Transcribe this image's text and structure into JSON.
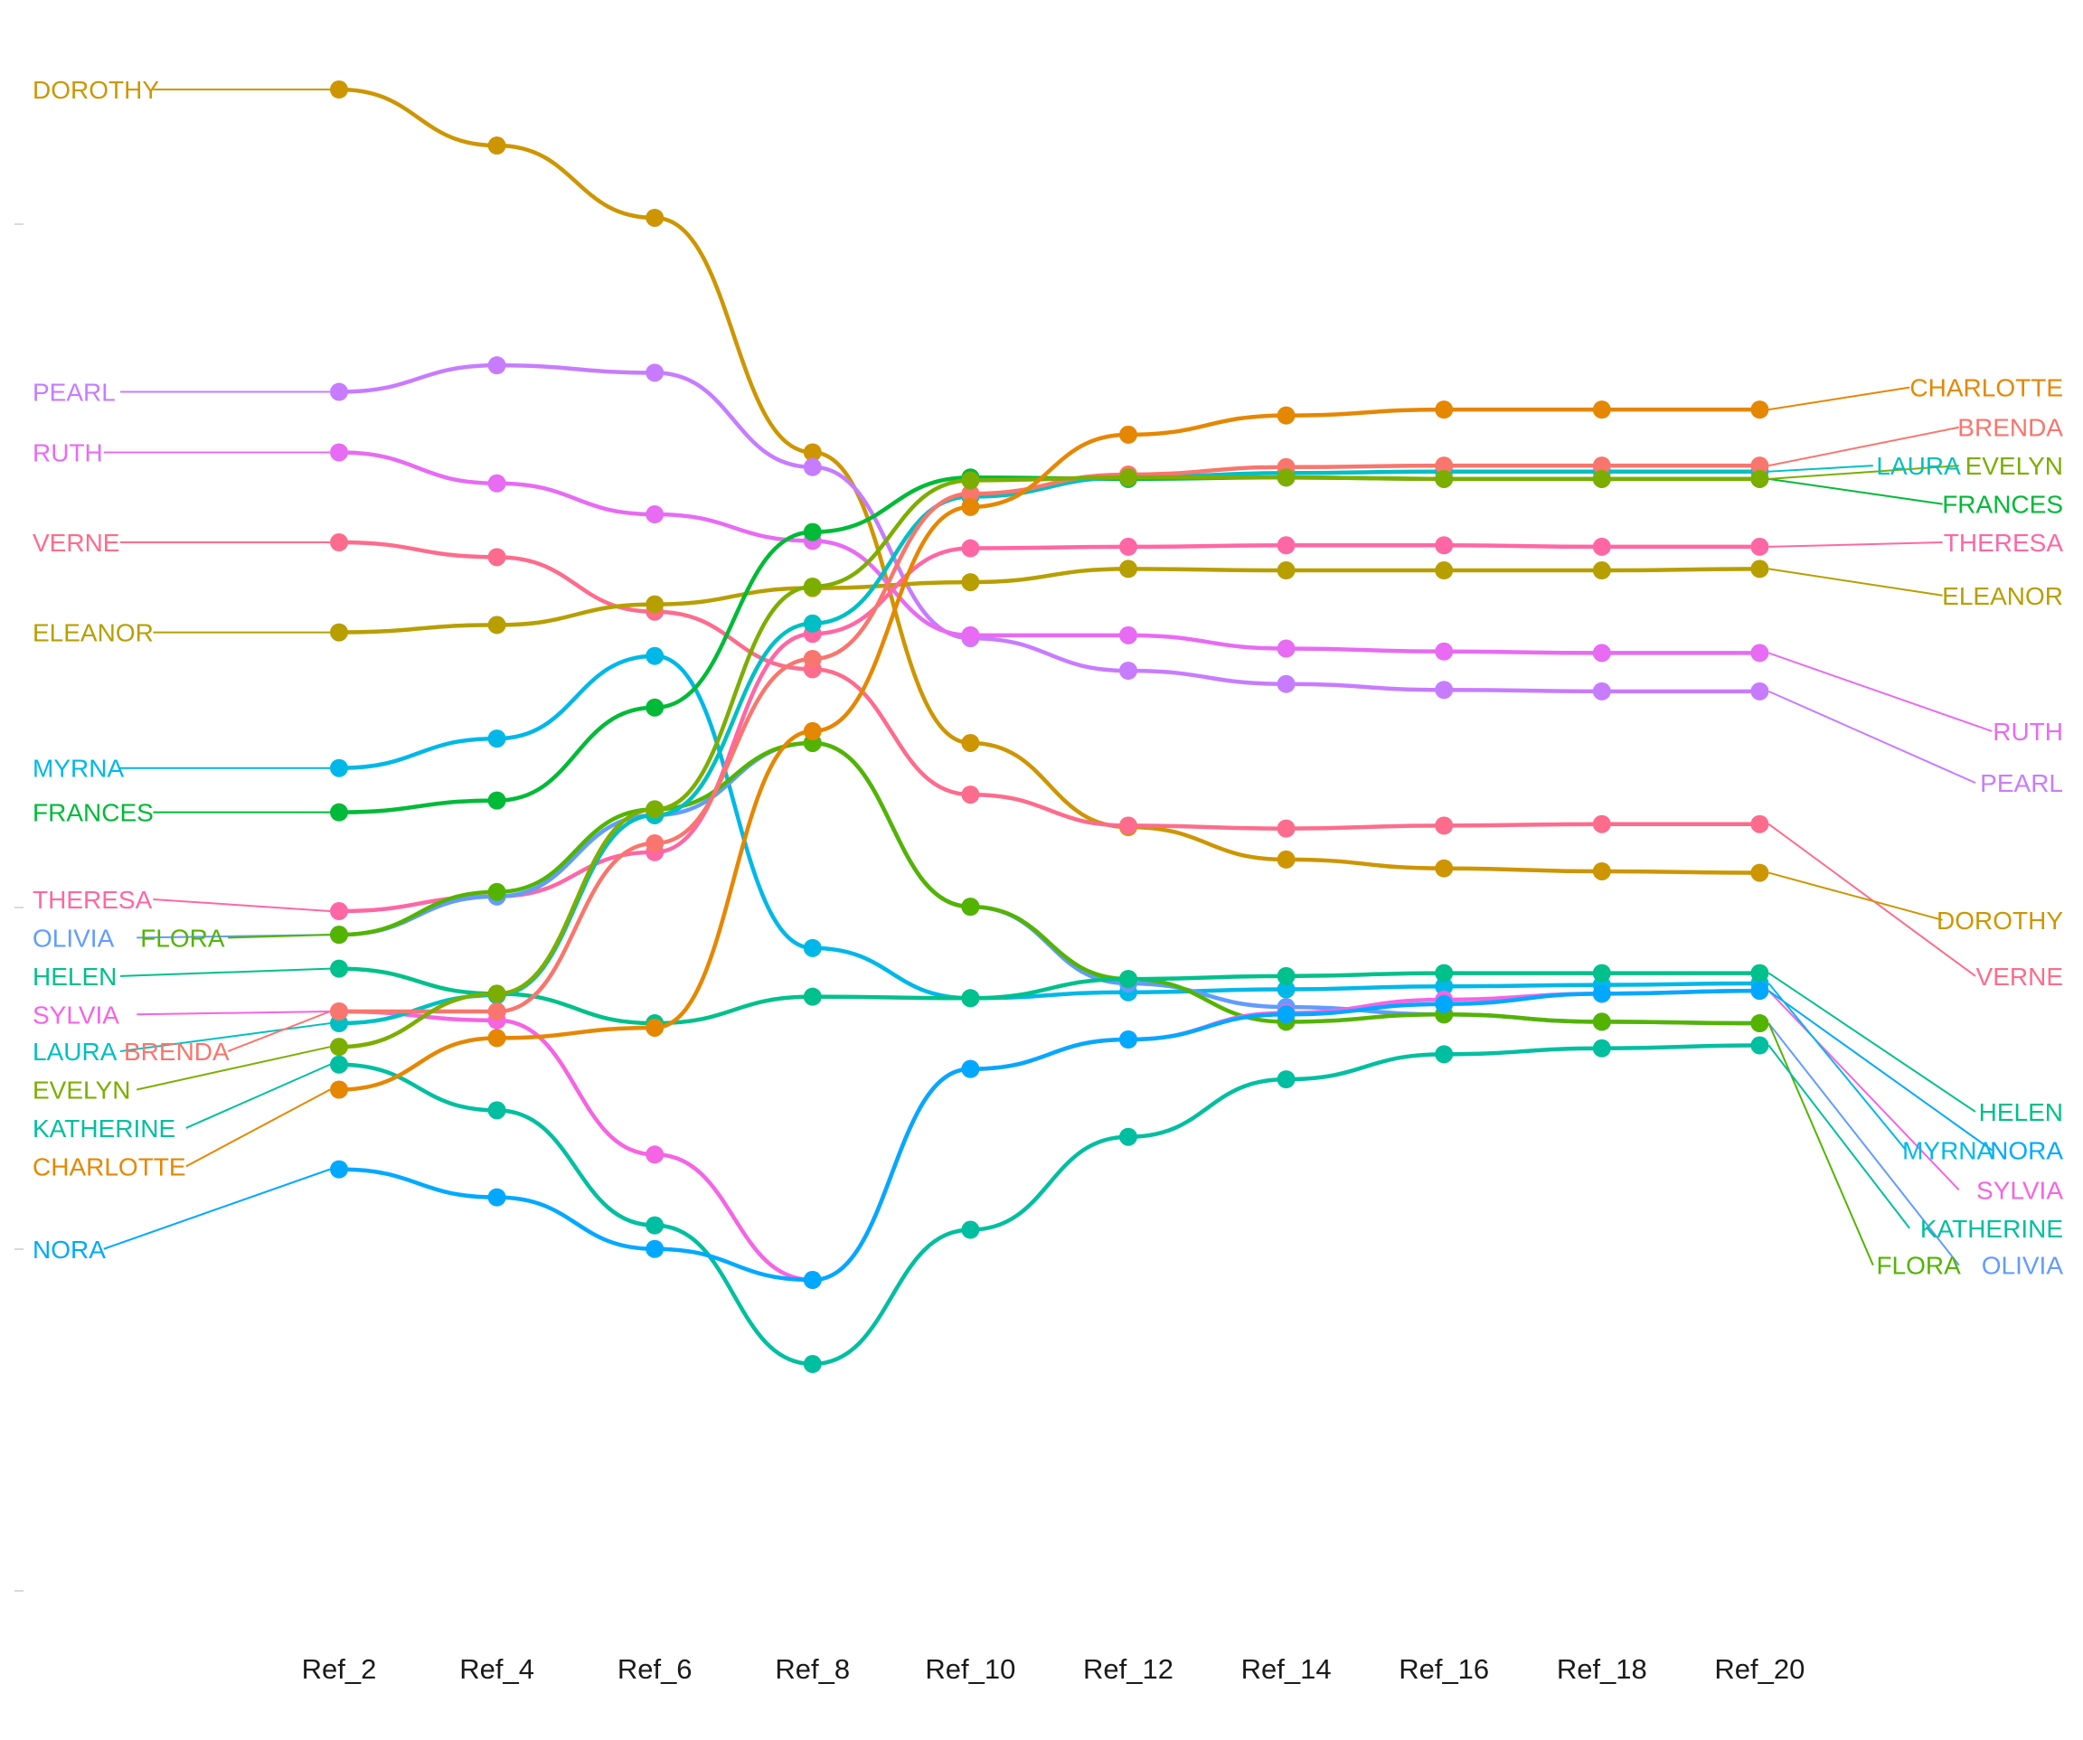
{
  "chart_data": {
    "type": "line",
    "x": [
      "Ref_2",
      "Ref_4",
      "Ref_6",
      "Ref_8",
      "Ref_10",
      "Ref_12",
      "Ref_14",
      "Ref_16",
      "Ref_18",
      "Ref_20"
    ],
    "ylim": [
      0,
      1000
    ],
    "grid": false,
    "legend": "none",
    "series": [
      {
        "name": "DOROTHY",
        "color": "#CD9600",
        "values": [
          1000,
          962,
          913,
          754,
          557,
          500,
          478,
          472,
          470,
          469
        ]
      },
      {
        "name": "PEARL",
        "color": "#C77CFF",
        "values": [
          795,
          813,
          808,
          744,
          628,
          606,
          597,
          593,
          592,
          592
        ]
      },
      {
        "name": "RUTH",
        "color": "#E76BF3",
        "values": [
          754,
          733,
          712,
          694,
          630,
          630,
          621,
          619,
          618,
          618
        ]
      },
      {
        "name": "VERNE",
        "color": "#FD6C8C",
        "values": [
          693,
          683,
          646,
          607,
          522,
          501,
          499,
          501,
          502,
          502
        ]
      },
      {
        "name": "ELEANOR",
        "color": "#B79F00",
        "values": [
          632,
          637,
          651,
          662,
          666,
          675,
          674,
          674,
          674,
          675
        ]
      },
      {
        "name": "MYRNA",
        "color": "#00B8E7",
        "values": [
          540,
          560,
          616,
          418,
          384,
          388,
          390,
          392,
          393,
          394
        ]
      },
      {
        "name": "FRANCES",
        "color": "#00BA38",
        "values": [
          510,
          518,
          581,
          700,
          737,
          736,
          737,
          736,
          736,
          736
        ]
      },
      {
        "name": "THERESA",
        "color": "#FF67A4",
        "values": [
          443,
          453,
          483,
          631,
          689,
          690,
          691,
          691,
          690,
          690
        ]
      },
      {
        "name": "OLIVIA",
        "color": "#619CFF",
        "values": [
          427,
          453,
          508,
          557,
          446,
          394,
          378,
          373,
          368,
          367
        ]
      },
      {
        "name": "FLORA",
        "color": "#53B400",
        "values": [
          427,
          456,
          512,
          557,
          446,
          397,
          368,
          373,
          368,
          367
        ]
      },
      {
        "name": "HELEN",
        "color": "#00C08B",
        "values": [
          404,
          387,
          367,
          385,
          384,
          397,
          399,
          401,
          401,
          401
        ]
      },
      {
        "name": "SYLVIA",
        "color": "#F564E3",
        "values": [
          375,
          369,
          278,
          193,
          336,
          356,
          374,
          383,
          387,
          389
        ]
      },
      {
        "name": "LAURA",
        "color": "#00BFC4",
        "values": [
          367,
          386,
          508,
          638,
          724,
          737,
          740,
          741,
          741,
          741
        ]
      },
      {
        "name": "BRENDA",
        "color": "#F8766D",
        "values": [
          375,
          375,
          489,
          614,
          726,
          739,
          744,
          745,
          745,
          745
        ]
      },
      {
        "name": "EVELYN",
        "color": "#7CAE00",
        "values": [
          351,
          387,
          512,
          663,
          735,
          737,
          737,
          736,
          736,
          736
        ]
      },
      {
        "name": "KATHERINE",
        "color": "#00BFA0",
        "values": [
          339,
          308,
          230,
          136,
          227,
          290,
          329,
          346,
          350,
          352
        ]
      },
      {
        "name": "CHARLOTTE",
        "color": "#E58700",
        "values": [
          322,
          357,
          364,
          565,
          717,
          766,
          779,
          783,
          783,
          783
        ]
      },
      {
        "name": "NORA",
        "color": "#00A9FF",
        "values": [
          268,
          249,
          214,
          193,
          336,
          356,
          373,
          380,
          387,
          389
        ]
      }
    ],
    "left_labels": [
      {
        "name": "DOROTHY",
        "label": "DOROTHY",
        "color": "#CD9600",
        "row": 1000
      },
      {
        "name": "PEARL",
        "label": "PEARL",
        "color": "#C77CFF",
        "row": 795
      },
      {
        "name": "RUTH",
        "label": "RUTH",
        "color": "#E76BF3",
        "row": 754
      },
      {
        "name": "VERNE",
        "label": "VERNE",
        "color": "#FD6C8C",
        "row": 693
      },
      {
        "name": "ELEANOR",
        "label": "ELEANOR",
        "color": "#B79F00",
        "row": 632
      },
      {
        "name": "MYRNA",
        "label": "MYRNA",
        "color": "#00B8E7",
        "row": 540
      },
      {
        "name": "FRANCES",
        "label": "FRANCES",
        "color": "#00BA38",
        "row": 510
      },
      {
        "name": "THERESA",
        "label": "THERESA",
        "color": "#FF67A4",
        "row": 451
      },
      {
        "name": "OLIVIA",
        "label": "OLIVIA",
        "color": "#619CFF",
        "row": 425
      },
      {
        "name": "FLORA",
        "label": "FLORA",
        "color": "#53B400",
        "row": 425
      },
      {
        "name": "HELEN",
        "label": "HELEN",
        "color": "#00C08B",
        "row": 399
      },
      {
        "name": "SYLVIA",
        "label": "SYLVIA",
        "color": "#F564E3",
        "row": 373
      },
      {
        "name": "LAURA",
        "label": "LAURA",
        "color": "#00BFC4",
        "row": 348
      },
      {
        "name": "BRENDA",
        "label": "BRENDA",
        "color": "#F8766D",
        "row": 348
      },
      {
        "name": "EVELYN",
        "label": "EVELYN",
        "color": "#7CAE00",
        "row": 322
      },
      {
        "name": "KATHERINE",
        "label": "KATHERINE",
        "color": "#00BFA0",
        "row": 296
      },
      {
        "name": "CHARLOTTE",
        "label": "CHARLOTTE",
        "color": "#E58700",
        "row": 270
      },
      {
        "name": "NORA",
        "label": "NORA",
        "color": "#00A9FF",
        "row": 214
      }
    ],
    "right_labels": [
      {
        "name": "CHARLOTTE",
        "label": "CHARLOTTE",
        "color": "#E58700",
        "row": 798
      },
      {
        "name": "BRENDA",
        "label": "BRENDA",
        "color": "#F8766D",
        "row": 771
      },
      {
        "name": "LAURA",
        "label": "LAURA",
        "color": "#00BFC4",
        "row": 745
      },
      {
        "name": "EVELYN",
        "label": "EVELYN",
        "color": "#7CAE00",
        "row": 745
      },
      {
        "name": "FRANCES",
        "label": "FRANCES",
        "color": "#00BA38",
        "row": 719
      },
      {
        "name": "THERESA",
        "label": "THERESA",
        "color": "#FF67A4",
        "row": 693
      },
      {
        "name": "ELEANOR",
        "label": "ELEANOR",
        "color": "#B79F00",
        "row": 657
      },
      {
        "name": "RUTH",
        "label": "RUTH",
        "color": "#E76BF3",
        "row": 565
      },
      {
        "name": "PEARL",
        "label": "PEARL",
        "color": "#C77CFF",
        "row": 530
      },
      {
        "name": "DOROTHY",
        "label": "DOROTHY",
        "color": "#CD9600",
        "row": 437
      },
      {
        "name": "VERNE",
        "label": "VERNE",
        "color": "#FD6C8C",
        "row": 399
      },
      {
        "name": "HELEN",
        "label": "HELEN",
        "color": "#00C08B",
        "row": 307
      },
      {
        "name": "MYRNA",
        "label": "MYRNA",
        "color": "#00B8E7",
        "row": 281
      },
      {
        "name": "NORA",
        "label": "NORA",
        "color": "#00A9FF",
        "row": 281
      },
      {
        "name": "SYLVIA",
        "label": "SYLVIA",
        "color": "#F564E3",
        "row": 254
      },
      {
        "name": "KATHERINE",
        "label": "KATHERINE",
        "color": "#00BFA0",
        "row": 228
      },
      {
        "name": "FLORA",
        "label": "FLORA",
        "color": "#53B400",
        "row": 203
      },
      {
        "name": "OLIVIA",
        "label": "OLIVIA",
        "color": "#619CFF",
        "row": 203
      }
    ]
  }
}
